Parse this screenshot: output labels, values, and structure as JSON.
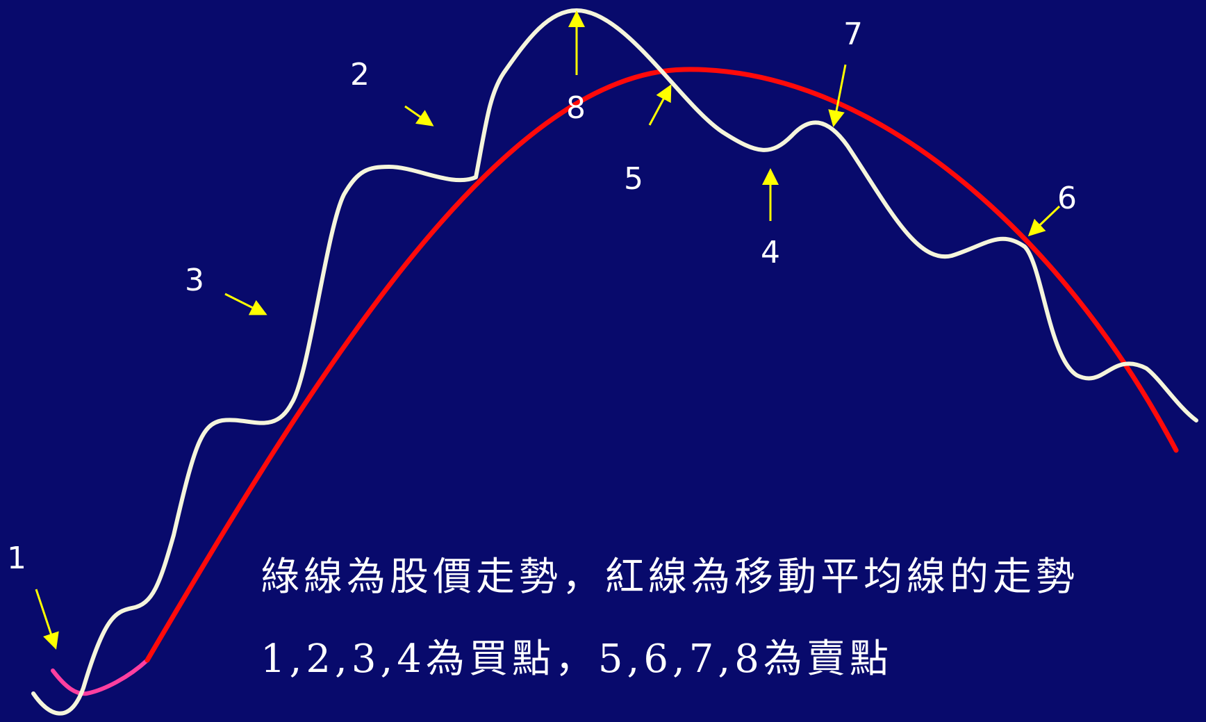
{
  "colors": {
    "background": "#080a6c",
    "price_line": "#f5f5dc",
    "moving_average_line": "#ff0a0a",
    "moving_average_start": "#ff3fa0",
    "arrows": "#ffff00",
    "text": "#ffffff"
  },
  "markers": [
    {
      "id": "1",
      "label": "1"
    },
    {
      "id": "2",
      "label": "2"
    },
    {
      "id": "3",
      "label": "3"
    },
    {
      "id": "4",
      "label": "4"
    },
    {
      "id": "5",
      "label": "5"
    },
    {
      "id": "6",
      "label": "6"
    },
    {
      "id": "7",
      "label": "7"
    },
    {
      "id": "8",
      "label": "8"
    }
  ],
  "caption": {
    "line1": "綠線為股價走勢，紅線為移動平均線的走勢",
    "line2": "1,2,3,4為買點，5,6,7,8為賣點"
  }
}
